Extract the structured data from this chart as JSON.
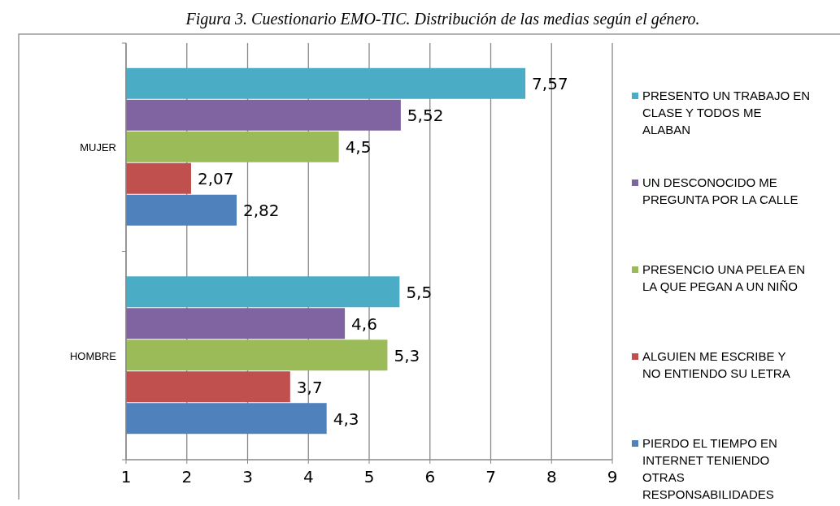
{
  "chart_data": {
    "type": "bar",
    "orientation": "horizontal",
    "title": "Figura 3. Cuestionario EMO-TIC. Distribución de las medias según el género.",
    "categories": [
      "MUJER",
      "HOMBRE"
    ],
    "series": [
      {
        "name": "PRESENTO UN TRABAJO EN CLASE Y TODOS ME ALABAN",
        "color": "#4bacc6",
        "values": [
          7.57,
          5.5
        ],
        "value_labels": [
          "7,57",
          "5,5"
        ]
      },
      {
        "name": "UN DESCONOCIDO ME PREGUNTA POR LA CALLE",
        "color": "#8064a2",
        "values": [
          5.52,
          4.6
        ],
        "value_labels": [
          "5,52",
          "4,6"
        ]
      },
      {
        "name": "PRESENCIO UNA PELEA EN LA QUE PEGAN A UN NIÑO",
        "color": "#9bbb59",
        "values": [
          4.5,
          5.3
        ],
        "value_labels": [
          "4,5",
          "5,3"
        ]
      },
      {
        "name": "ALGUIEN ME ESCRIBE Y NO ENTIENDO SU LETRA",
        "color": "#c0504d",
        "values": [
          2.07,
          3.7
        ],
        "value_labels": [
          "2,07",
          "3,7"
        ]
      },
      {
        "name": "PIERDO EL TIEMPO EN INTERNET TENIENDO OTRAS RESPONSABILIDADES",
        "color": "#4f81bd",
        "values": [
          2.82,
          4.3
        ],
        "value_labels": [
          "2,82",
          "4,3"
        ]
      }
    ],
    "xlim": [
      1,
      9
    ],
    "xticks": [
      1,
      2,
      3,
      4,
      5,
      6,
      7,
      8,
      9
    ],
    "grid": "x",
    "legend": "right"
  }
}
